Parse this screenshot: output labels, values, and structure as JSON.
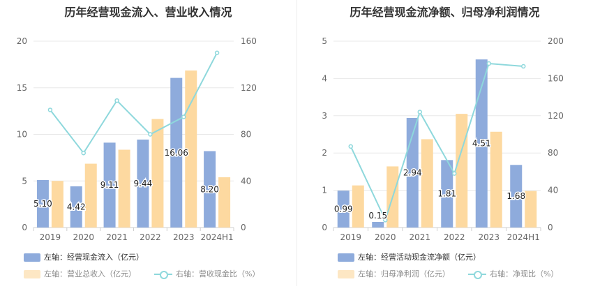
{
  "charts": {
    "left": {
      "title": "历年经营现金流入、营业收入情况",
      "legend": {
        "bar1": "左轴：经营现金流入（亿元）",
        "bar2": "左轴：营业总收入（亿元）",
        "line": "右轴：营收现金比（%）"
      }
    },
    "right": {
      "title": "历年经营现金流净额、归母净利润情况",
      "legend": {
        "bar1": "左轴：经营活动现金流净额（亿元）",
        "bar2": "左轴：归母净利润（亿元）",
        "line": "右轴：净现比（%）"
      }
    }
  },
  "colors": {
    "bar1": "#8eabdc",
    "bar2": "#fdd9a0",
    "line": "#8ed8dc",
    "axis_text": "#666666",
    "grid": "#e8e8e8"
  },
  "chart_data": [
    {
      "type": "bar",
      "title": "历年经营现金流入、营业收入情况",
      "categories": [
        "2019",
        "2020",
        "2021",
        "2022",
        "2023",
        "2024H1"
      ],
      "left_ylim": [
        0,
        20
      ],
      "left_ticks": [
        0,
        5,
        10,
        15,
        20
      ],
      "right_ylim": [
        0,
        160
      ],
      "right_ticks": [
        0,
        40,
        80,
        120,
        160
      ],
      "series": [
        {
          "name": "左轴：经营现金流入（亿元）",
          "axis": "left",
          "kind": "bar",
          "values": [
            5.1,
            4.42,
            9.11,
            9.44,
            16.06,
            8.2
          ],
          "labels": [
            "5.10",
            "4.42",
            "9.11",
            "9.44",
            "16.06",
            "8.20"
          ]
        },
        {
          "name": "左轴：营业总收入（亿元）",
          "axis": "left",
          "kind": "bar",
          "values": [
            5.0,
            6.85,
            8.35,
            11.65,
            16.85,
            5.4
          ]
        },
        {
          "name": "右轴：营收现金比（%）",
          "axis": "right",
          "kind": "line",
          "values": [
            101,
            64,
            109,
            80,
            95,
            150
          ]
        }
      ],
      "grid": true,
      "legend_position": "bottom"
    },
    {
      "type": "bar",
      "title": "历年经营现金流净额、归母净利润情况",
      "categories": [
        "2019",
        "2020",
        "2021",
        "2022",
        "2023",
        "2024H1"
      ],
      "left_ylim": [
        0,
        5
      ],
      "left_ticks": [
        0,
        1,
        2,
        3,
        4,
        5
      ],
      "right_ylim": [
        0,
        200
      ],
      "right_ticks": [
        0,
        40,
        80,
        120,
        160,
        200
      ],
      "series": [
        {
          "name": "左轴：经营活动现金流净额（亿元）",
          "axis": "left",
          "kind": "bar",
          "values": [
            0.99,
            0.15,
            2.94,
            1.81,
            4.51,
            1.68
          ],
          "labels": [
            "0.99",
            "0.15",
            "2.94",
            "1.81",
            "4.51",
            "1.68"
          ]
        },
        {
          "name": "左轴：归母净利润（亿元）",
          "axis": "left",
          "kind": "bar",
          "values": [
            1.13,
            1.64,
            2.37,
            3.05,
            2.57,
            0.98
          ]
        },
        {
          "name": "右轴：净现比（%）",
          "axis": "right",
          "kind": "line",
          "values": [
            87,
            8,
            124,
            58,
            176,
            173
          ]
        }
      ],
      "grid": true,
      "legend_position": "bottom"
    }
  ]
}
